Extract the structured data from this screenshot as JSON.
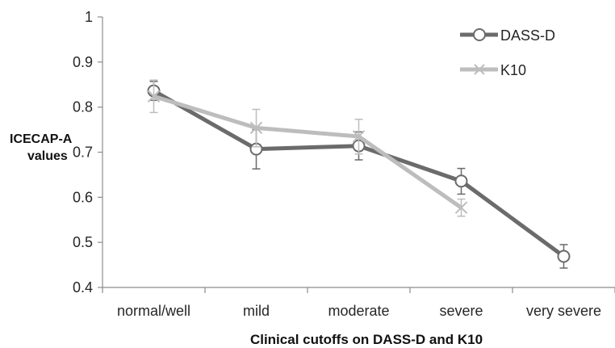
{
  "chart_data": {
    "type": "line",
    "title": "",
    "xlabel": "Clinical cutoffs on DASS-D and K10",
    "ylabel_lines": [
      "ICECAP-A",
      "values"
    ],
    "categories": [
      "normal/well",
      "mild",
      "moderate",
      "severe",
      "very severe"
    ],
    "ylim": [
      0.4,
      1.0
    ],
    "yticks": [
      "0.4",
      "0.5",
      "0.6",
      "0.7",
      "0.8",
      "0.9",
      "1"
    ],
    "grid": false,
    "legend_position": "top-right",
    "series": [
      {
        "name": "DASS-D",
        "marker": "circle",
        "color": "#6b6b6b",
        "values": [
          0.836,
          0.707,
          0.714,
          0.636,
          0.469
        ],
        "err_low": [
          0.815,
          0.663,
          0.683,
          0.607,
          0.443
        ],
        "err_high": [
          0.857,
          0.75,
          0.745,
          0.664,
          0.495
        ]
      },
      {
        "name": "K10",
        "marker": "x",
        "color": "#bdbdbd",
        "values": [
          0.824,
          0.754,
          0.735,
          0.577,
          null
        ],
        "err_low": [
          0.788,
          0.712,
          0.696,
          0.558,
          null
        ],
        "err_high": [
          0.86,
          0.795,
          0.773,
          0.596,
          null
        ]
      }
    ]
  }
}
